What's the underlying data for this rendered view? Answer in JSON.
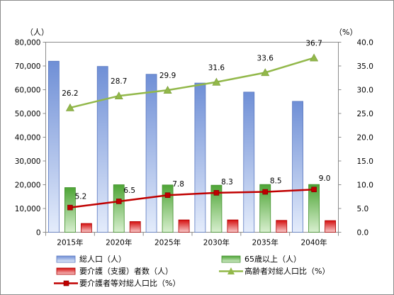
{
  "chart_data": {
    "type": "bar",
    "categories": [
      "2015年",
      "2020年",
      "2025年",
      "2030年",
      "2035年",
      "2040年"
    ],
    "left_axis": {
      "unit": "（人）",
      "ylim": [
        0,
        80000
      ],
      "ticks": [
        "0",
        "10,000",
        "20,000",
        "30,000",
        "40,000",
        "50,000",
        "60,000",
        "70,000",
        "80,000"
      ]
    },
    "right_axis": {
      "unit": "（%）",
      "ylim": [
        0,
        40
      ],
      "ticks": [
        "0.0",
        "5.0",
        "10.0",
        "15.0",
        "20.0",
        "25.0",
        "30.0",
        "35.0",
        "40.0"
      ]
    },
    "series": [
      {
        "name": "総人口（人）",
        "kind": "bar",
        "axis": "left",
        "color": "#7f9fdc",
        "values": [
          72000,
          69800,
          66500,
          62800,
          59000,
          55100
        ]
      },
      {
        "name": "65歳以上（人）",
        "kind": "bar",
        "axis": "left",
        "color": "#62b34a",
        "values": [
          18800,
          20000,
          19900,
          19800,
          20100,
          20100
        ]
      },
      {
        "name": "要介護（支援）者数（人）",
        "kind": "bar",
        "axis": "left",
        "color": "#e02020",
        "values": [
          3700,
          4500,
          5200,
          5200,
          5000,
          4900
        ]
      },
      {
        "name": "高齢者対総人口比（%）",
        "kind": "line",
        "axis": "right",
        "color": "#92b84a",
        "marker": "triangle",
        "values": [
          26.2,
          28.7,
          29.9,
          31.6,
          33.6,
          36.7
        ],
        "labels": [
          "26.2",
          "28.7",
          "29.9",
          "31.6",
          "33.6",
          "36.7"
        ]
      },
      {
        "name": "要介護者等対総人口比（%）",
        "kind": "line",
        "axis": "right",
        "color": "#c00000",
        "marker": "square",
        "values": [
          5.2,
          6.5,
          7.8,
          8.3,
          8.5,
          9.0
        ],
        "labels": [
          "5.2",
          "6.5",
          "7.8",
          "8.3",
          "8.5",
          "9.0"
        ]
      }
    ],
    "grid": false,
    "legend_position": "bottom"
  }
}
